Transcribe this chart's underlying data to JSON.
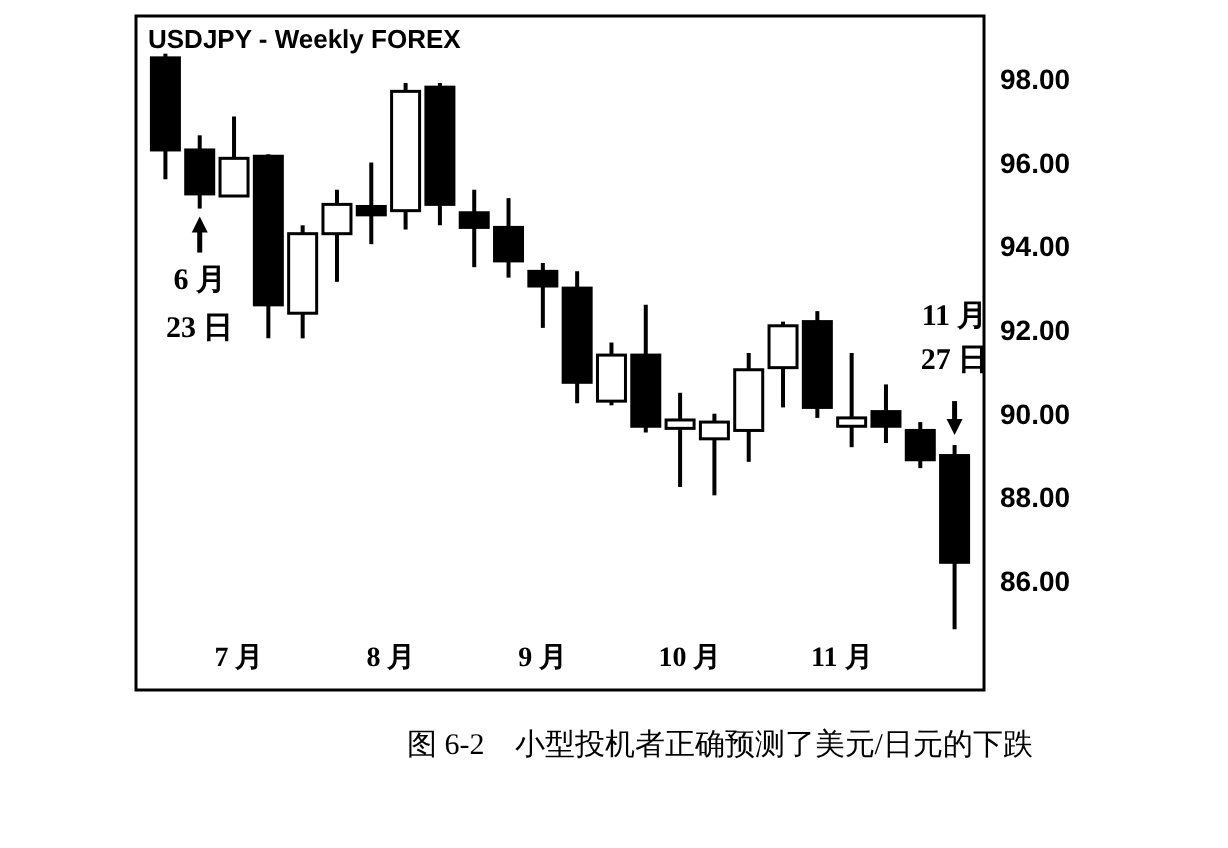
{
  "chart_data": {
    "type": "candlestick",
    "title": "USDJPY - Weekly  FOREX",
    "x": [
      "--06-16",
      "--06-23",
      "--06-30",
      "--07-07",
      "--07-14",
      "--07-21",
      "--07-28",
      "--08-04",
      "--08-11",
      "--08-18",
      "--08-25",
      "--09-01",
      "--09-08",
      "--09-15",
      "--09-22",
      "--09-29",
      "--10-06",
      "--10-13",
      "--10-20",
      "--10-27",
      "--11-03",
      "--11-10",
      "--11-17",
      "--11-24"
    ],
    "ohlc": [
      [
        98.5,
        98.6,
        95.6,
        96.3
      ],
      [
        96.3,
        96.65,
        94.9,
        95.25
      ],
      [
        95.2,
        97.1,
        95.2,
        96.1
      ],
      [
        96.15,
        96.2,
        91.8,
        92.6
      ],
      [
        92.4,
        94.5,
        91.8,
        94.3
      ],
      [
        94.3,
        95.35,
        93.15,
        95.0
      ],
      [
        94.95,
        96.0,
        94.05,
        94.75
      ],
      [
        94.85,
        97.9,
        94.4,
        97.7
      ],
      [
        97.8,
        97.9,
        94.5,
        95.0
      ],
      [
        94.8,
        95.35,
        93.5,
        94.45
      ],
      [
        94.45,
        95.15,
        93.25,
        93.65
      ],
      [
        93.4,
        93.6,
        92.05,
        93.05
      ],
      [
        93.0,
        93.4,
        90.25,
        90.75
      ],
      [
        90.3,
        91.7,
        90.2,
        91.4
      ],
      [
        91.4,
        92.6,
        89.55,
        89.7
      ],
      [
        89.65,
        90.5,
        88.25,
        89.85
      ],
      [
        89.4,
        90.0,
        88.05,
        89.8
      ],
      [
        89.6,
        91.45,
        88.85,
        91.05
      ],
      [
        91.1,
        92.2,
        90.15,
        92.1
      ],
      [
        92.2,
        92.45,
        89.9,
        90.15
      ],
      [
        89.7,
        91.45,
        89.2,
        89.9
      ],
      [
        90.05,
        90.7,
        89.3,
        89.7
      ],
      [
        89.6,
        89.8,
        88.7,
        88.9
      ],
      [
        89.0,
        89.25,
        84.85,
        86.45
      ]
    ],
    "xlim": [
      "--06-10",
      "--11-30"
    ],
    "xticks": [
      {
        "value": "--07-01",
        "label": "7 月"
      },
      {
        "value": "--08-01",
        "label": "8 月"
      },
      {
        "value": "--09-01",
        "label": "9 月"
      },
      {
        "value": "--10-01",
        "label": "10 月"
      },
      {
        "value": "--11-01",
        "label": "11 月"
      }
    ],
    "ylim": [
      83.4,
      99.5
    ],
    "yticks": [
      {
        "value": 86,
        "label": "86.00"
      },
      {
        "value": 88,
        "label": "88.00"
      },
      {
        "value": 90,
        "label": "90.00"
      },
      {
        "value": 92,
        "label": "92.00"
      },
      {
        "value": 94,
        "label": "94.00"
      },
      {
        "value": 96,
        "label": "96.00"
      },
      {
        "value": 98,
        "label": "98.00"
      }
    ],
    "annotations": [
      {
        "text": "6 月\n23 日",
        "x": "--06-23",
        "y": 94.9
      },
      {
        "text": "11 月\n27 日",
        "x": "--11-24",
        "y": 89.25
      },
      "图 6-2　小型投机者正确预测了美元/日元的下跌"
    ]
  }
}
